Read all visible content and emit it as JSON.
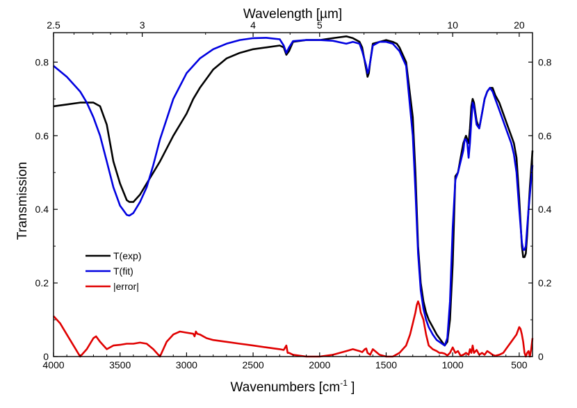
{
  "chart_data": {
    "type": "line",
    "xlabel": "Wavenumbers [cm",
    "xlabel_sup": "-1",
    "xlabel_end": " ]",
    "ylabel": "Transmission",
    "top_xlabel": "Wavelength [µm]",
    "xlim": [
      4000,
      400
    ],
    "ylim": [
      0,
      0.88
    ],
    "x_ticks": [
      4000,
      3500,
      3000,
      2500,
      2000,
      1500,
      1000,
      500
    ],
    "x_tick_labels": [
      "4000",
      "3500",
      "3000",
      "2500",
      "2000",
      "1500",
      "1000",
      "500"
    ],
    "y_ticks": [
      0,
      0.2,
      0.4,
      0.6,
      0.8
    ],
    "y_tick_labels": [
      "0",
      "0.2",
      "0.4",
      "0.6",
      "0.8"
    ],
    "right_y_tick_labels": [
      "0",
      "0.2",
      "0.4",
      "0.6",
      "0.8"
    ],
    "top_ticks_um": [
      2.5,
      3,
      4,
      5,
      10,
      20
    ],
    "top_tick_labels": [
      "2.5",
      "3",
      "4",
      "5",
      "10",
      "20"
    ],
    "legend_position": "lower-left",
    "series": [
      {
        "name": "T(exp)",
        "color": "#000000",
        "x": [
          4000,
          3900,
          3800,
          3700,
          3650,
          3600,
          3550,
          3500,
          3450,
          3430,
          3400,
          3350,
          3300,
          3200,
          3100,
          3000,
          2950,
          2900,
          2800,
          2700,
          2600,
          2500,
          2400,
          2300,
          2270,
          2250,
          2230,
          2200,
          2100,
          2000,
          1900,
          1800,
          1750,
          1700,
          1680,
          1650,
          1640,
          1630,
          1620,
          1600,
          1550,
          1500,
          1450,
          1420,
          1400,
          1350,
          1300,
          1280,
          1260,
          1240,
          1220,
          1200,
          1180,
          1150,
          1120,
          1100,
          1080,
          1060,
          1040,
          1020,
          1000,
          980,
          960,
          940,
          920,
          900,
          880,
          870,
          860,
          850,
          840,
          820,
          800,
          780,
          760,
          740,
          720,
          700,
          680,
          650,
          620,
          600,
          580,
          560,
          540,
          520,
          500,
          480,
          470,
          460,
          450,
          440,
          430,
          420,
          410,
          400
        ],
        "y": [
          0.68,
          0.685,
          0.69,
          0.69,
          0.68,
          0.63,
          0.53,
          0.47,
          0.425,
          0.42,
          0.42,
          0.44,
          0.47,
          0.53,
          0.6,
          0.66,
          0.7,
          0.73,
          0.78,
          0.81,
          0.825,
          0.835,
          0.84,
          0.845,
          0.84,
          0.82,
          0.83,
          0.855,
          0.86,
          0.86,
          0.865,
          0.87,
          0.865,
          0.855,
          0.84,
          0.78,
          0.76,
          0.77,
          0.8,
          0.85,
          0.855,
          0.86,
          0.855,
          0.85,
          0.84,
          0.8,
          0.65,
          0.5,
          0.3,
          0.2,
          0.15,
          0.12,
          0.1,
          0.08,
          0.06,
          0.05,
          0.04,
          0.03,
          0.04,
          0.1,
          0.25,
          0.49,
          0.5,
          0.54,
          0.58,
          0.6,
          0.58,
          0.62,
          0.68,
          0.7,
          0.69,
          0.64,
          0.62,
          0.66,
          0.7,
          0.72,
          0.73,
          0.73,
          0.71,
          0.69,
          0.66,
          0.64,
          0.62,
          0.6,
          0.58,
          0.54,
          0.43,
          0.3,
          0.27,
          0.27,
          0.28,
          0.33,
          0.4,
          0.46,
          0.51,
          0.56
        ]
      },
      {
        "name": "T(fit)",
        "color": "#0000e0",
        "x": [
          4000,
          3900,
          3800,
          3750,
          3700,
          3650,
          3600,
          3550,
          3500,
          3450,
          3430,
          3400,
          3350,
          3300,
          3250,
          3200,
          3100,
          3000,
          2900,
          2800,
          2700,
          2600,
          2500,
          2400,
          2300,
          2270,
          2250,
          2230,
          2200,
          2100,
          2000,
          1900,
          1800,
          1750,
          1700,
          1680,
          1650,
          1640,
          1630,
          1620,
          1600,
          1550,
          1500,
          1450,
          1400,
          1350,
          1300,
          1280,
          1260,
          1240,
          1220,
          1200,
          1180,
          1150,
          1120,
          1100,
          1080,
          1060,
          1040,
          1020,
          1000,
          980,
          960,
          940,
          920,
          910,
          900,
          890,
          880,
          870,
          860,
          850,
          840,
          820,
          800,
          780,
          760,
          740,
          720,
          700,
          680,
          650,
          620,
          600,
          580,
          560,
          540,
          520,
          500,
          480,
          470,
          460,
          450,
          440,
          430,
          420,
          410,
          400
        ],
        "y": [
          0.79,
          0.76,
          0.72,
          0.69,
          0.65,
          0.6,
          0.53,
          0.46,
          0.41,
          0.385,
          0.383,
          0.39,
          0.42,
          0.46,
          0.52,
          0.59,
          0.7,
          0.77,
          0.81,
          0.835,
          0.85,
          0.86,
          0.865,
          0.866,
          0.862,
          0.845,
          0.825,
          0.84,
          0.857,
          0.86,
          0.86,
          0.858,
          0.85,
          0.855,
          0.85,
          0.83,
          0.79,
          0.77,
          0.78,
          0.8,
          0.845,
          0.855,
          0.855,
          0.85,
          0.83,
          0.79,
          0.6,
          0.45,
          0.28,
          0.18,
          0.13,
          0.1,
          0.08,
          0.06,
          0.045,
          0.04,
          0.035,
          0.03,
          0.05,
          0.15,
          0.35,
          0.48,
          0.5,
          0.53,
          0.56,
          0.59,
          0.59,
          0.58,
          0.54,
          0.58,
          0.64,
          0.69,
          0.68,
          0.63,
          0.62,
          0.66,
          0.7,
          0.72,
          0.73,
          0.72,
          0.7,
          0.67,
          0.64,
          0.62,
          0.6,
          0.58,
          0.55,
          0.5,
          0.4,
          0.31,
          0.29,
          0.29,
          0.3,
          0.35,
          0.4,
          0.44,
          0.48,
          0.52
        ]
      },
      {
        "name": "|error|",
        "color": "#e00000",
        "x": [
          4000,
          3950,
          3900,
          3850,
          3800,
          3750,
          3700,
          3680,
          3650,
          3600,
          3550,
          3500,
          3450,
          3400,
          3350,
          3300,
          3250,
          3200,
          3150,
          3100,
          3050,
          3000,
          2950,
          2940,
          2930,
          2920,
          2900,
          2850,
          2800,
          2700,
          2600,
          2500,
          2400,
          2300,
          2270,
          2250,
          2240,
          2230,
          2200,
          2100,
          2000,
          1900,
          1800,
          1750,
          1700,
          1680,
          1660,
          1650,
          1640,
          1620,
          1600,
          1550,
          1500,
          1450,
          1400,
          1350,
          1320,
          1300,
          1280,
          1270,
          1260,
          1250,
          1240,
          1220,
          1200,
          1180,
          1150,
          1120,
          1100,
          1080,
          1060,
          1040,
          1020,
          1000,
          980,
          960,
          940,
          920,
          900,
          880,
          870,
          860,
          850,
          840,
          820,
          800,
          780,
          760,
          740,
          720,
          700,
          680,
          650,
          620,
          600,
          580,
          560,
          540,
          520,
          510,
          500,
          490,
          480,
          470,
          460,
          450,
          440,
          430,
          420,
          410,
          400
        ],
        "y": [
          0.11,
          0.09,
          0.06,
          0.03,
          0.0,
          0.02,
          0.05,
          0.055,
          0.04,
          0.02,
          0.03,
          0.032,
          0.035,
          0.035,
          0.038,
          0.035,
          0.02,
          0.0,
          0.04,
          0.06,
          0.068,
          0.065,
          0.062,
          0.055,
          0.068,
          0.062,
          0.06,
          0.05,
          0.045,
          0.04,
          0.035,
          0.03,
          0.025,
          0.02,
          0.018,
          0.03,
          0.01,
          0.01,
          0.005,
          0.0,
          0.0,
          0.005,
          0.015,
          0.02,
          0.015,
          0.012,
          0.02,
          0.022,
          0.01,
          0.005,
          0.02,
          0.005,
          0.0,
          0.0,
          0.01,
          0.03,
          0.06,
          0.09,
          0.12,
          0.14,
          0.15,
          0.14,
          0.12,
          0.1,
          0.06,
          0.03,
          0.02,
          0.015,
          0.01,
          0.01,
          0.008,
          0.003,
          0.01,
          0.025,
          0.01,
          0.015,
          0.002,
          0.005,
          0.01,
          0.005,
          0.02,
          0.01,
          0.03,
          0.01,
          0.018,
          0.005,
          0.01,
          0.005,
          0.015,
          0.01,
          0.005,
          0.002,
          0.005,
          0.01,
          0.02,
          0.03,
          0.04,
          0.05,
          0.06,
          0.07,
          0.08,
          0.075,
          0.06,
          0.04,
          0.01,
          0.0,
          0.01,
          0.015,
          0.0,
          0.02,
          0.05
        ]
      }
    ]
  }
}
